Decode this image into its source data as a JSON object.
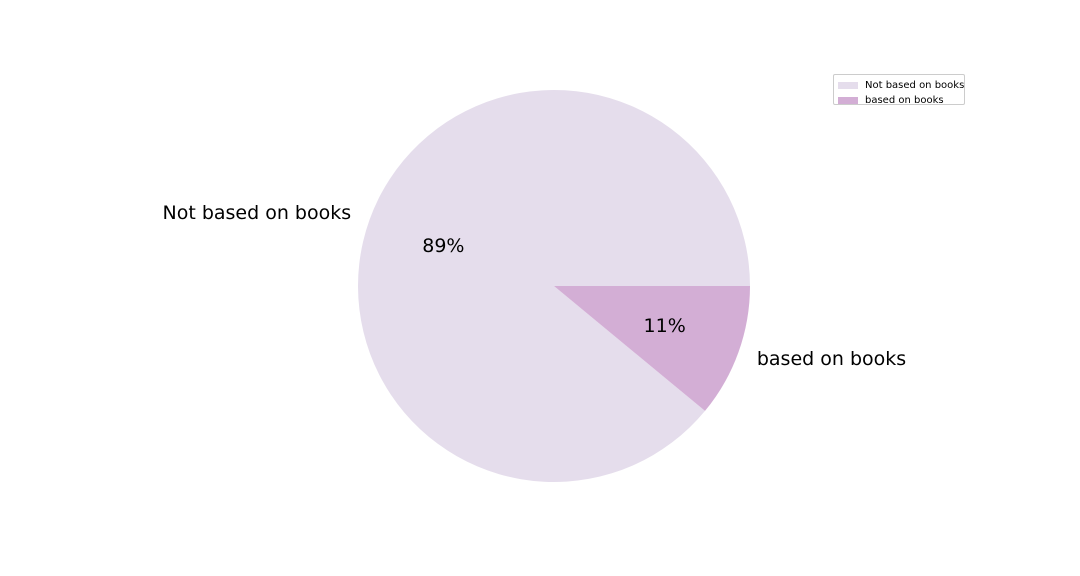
{
  "chart_data": {
    "type": "pie",
    "title": "",
    "categories": [
      "Not based on books",
      "based on books"
    ],
    "values": [
      89,
      11
    ],
    "value_labels": [
      "89%",
      "11%"
    ],
    "colors": [
      "#e5ddec",
      "#d3aed5"
    ],
    "start_angle_deg": 0,
    "direction": "counterclockwise",
    "legend": {
      "placement": "top-right",
      "entries": [
        "Not based on books",
        "based on books"
      ]
    }
  }
}
